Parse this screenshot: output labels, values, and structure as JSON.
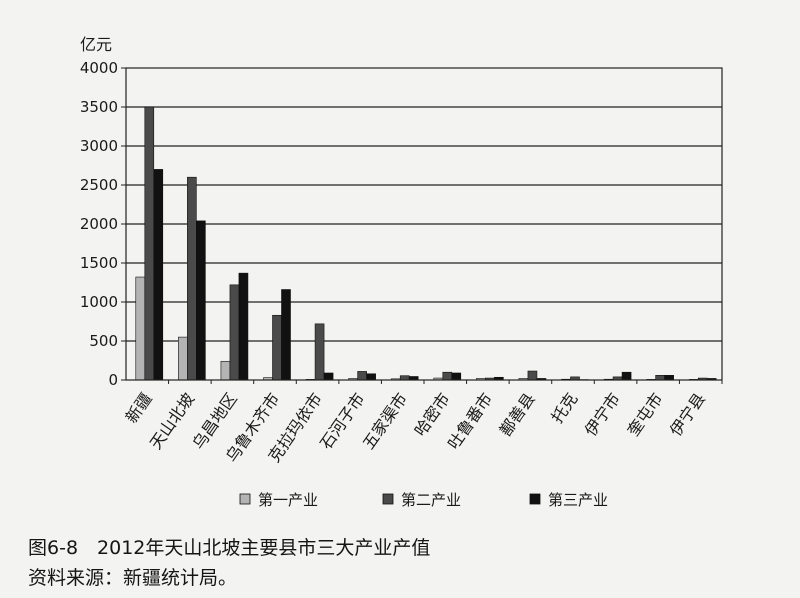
{
  "chart_data": {
    "type": "bar",
    "title": "",
    "ylabel": "亿元",
    "xlabel": "",
    "ylim": [
      0,
      4000
    ],
    "yticks": [
      0,
      500,
      1000,
      1500,
      2000,
      2500,
      3000,
      3500,
      4000
    ],
    "grid": true,
    "legend_position": "bottom",
    "categories": [
      "新疆",
      "天山北坡",
      "乌昌地区",
      "乌鲁木齐市",
      "克拉玛依市",
      "石河子市",
      "五家渠市",
      "哈密市",
      "吐鲁番市",
      "鄯善县",
      "托克",
      "伊宁市",
      "奎屯市",
      "伊宁县"
    ],
    "series": [
      {
        "name": "第一产业",
        "color": "#b4b4b4",
        "values": [
          1320,
          550,
          240,
          30,
          8,
          20,
          15,
          25,
          20,
          20,
          10,
          10,
          8,
          8
        ]
      },
      {
        "name": "第二产业",
        "color": "#4a4a4a",
        "values": [
          3500,
          2600,
          1220,
          830,
          720,
          110,
          55,
          100,
          25,
          115,
          40,
          40,
          60,
          25
        ]
      },
      {
        "name": "第三产业",
        "color": "#111111",
        "values": [
          2700,
          2040,
          1370,
          1160,
          90,
          80,
          45,
          90,
          35,
          20,
          5,
          100,
          60,
          20
        ]
      }
    ]
  },
  "caption": {
    "title": "图6-8　2012年天山北坡主要县市三大产业产值",
    "source": "资料来源：新疆统计局。"
  }
}
